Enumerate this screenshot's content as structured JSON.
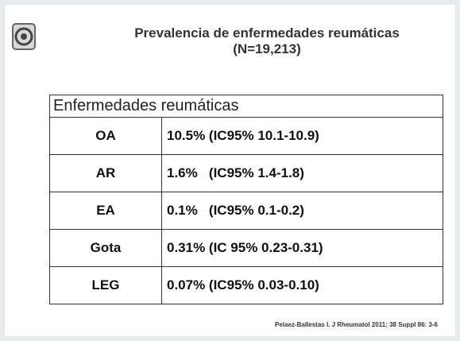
{
  "header": {
    "title": "Prevalencia de enfermedades reumáticas",
    "subtitle": "(N=19,213)"
  },
  "table": {
    "header": "Enfermedades reumáticas",
    "rows": [
      [
        "OA",
        "10.5% (IC95% 10.1-10.9)"
      ],
      [
        "AR",
        "1.6%   (IC95% 1.4-1.8)"
      ],
      [
        "EA",
        "0.1%   (IC95% 0.1-0.2)"
      ],
      [
        "Gota",
        "0.31% (IC 95% 0.23-0.31)"
      ],
      [
        "LEG",
        "0.07% (IC95% 0.03-0.10)"
      ]
    ]
  },
  "footer": {
    "citation": "Pelaez-Ballestas I. J Rheumatol 2011; 38 Suppl 86: 3-6"
  }
}
